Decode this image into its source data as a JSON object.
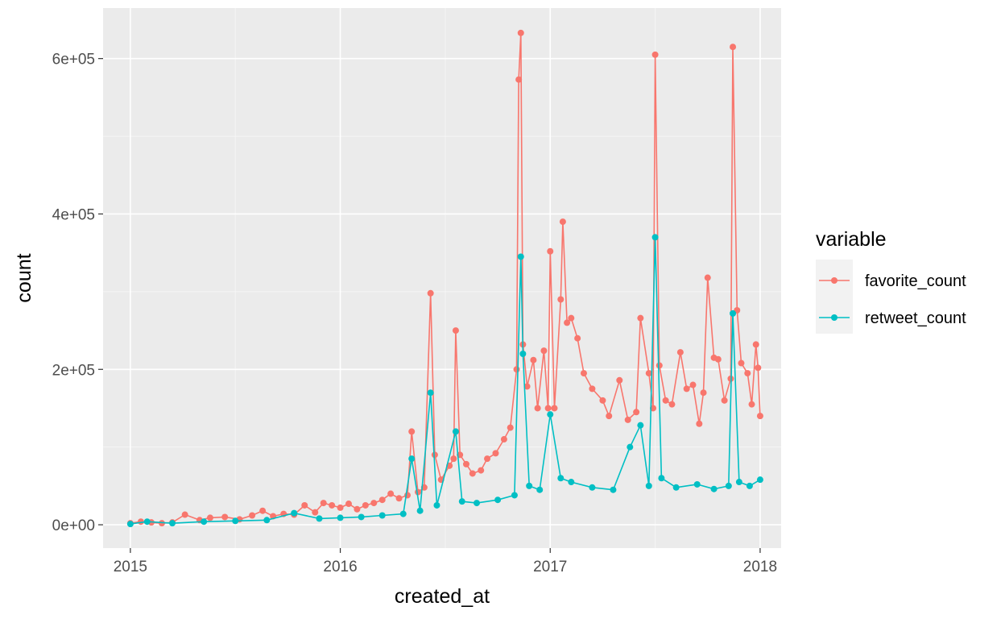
{
  "chart_data": {
    "type": "line",
    "xlabel": "created_at",
    "ylabel": "count",
    "xlim": [
      2014.87,
      2018.1
    ],
    "ylim": [
      -30000,
      665000
    ],
    "x_ticks": [
      2015,
      2016,
      2017,
      2018
    ],
    "x_tick_labels": [
      "2015",
      "2016",
      "2017",
      "2018"
    ],
    "y_ticks": [
      0,
      200000,
      400000,
      600000
    ],
    "y_tick_labels": [
      "0e+00",
      "2e+05",
      "4e+05",
      "6e+05"
    ],
    "grid": true,
    "legend": {
      "title": "variable",
      "position": "right"
    },
    "series": [
      {
        "name": "favorite_count",
        "color": "#F8766D",
        "points": [
          [
            2015.0,
            2000
          ],
          [
            2015.05,
            4000
          ],
          [
            2015.1,
            3000
          ],
          [
            2015.15,
            2000
          ],
          [
            2015.2,
            3000
          ],
          [
            2015.26,
            13000
          ],
          [
            2015.33,
            6000
          ],
          [
            2015.38,
            9000
          ],
          [
            2015.45,
            10000
          ],
          [
            2015.52,
            7000
          ],
          [
            2015.58,
            12000
          ],
          [
            2015.63,
            18000
          ],
          [
            2015.68,
            11000
          ],
          [
            2015.73,
            14000
          ],
          [
            2015.78,
            13000
          ],
          [
            2015.83,
            25000
          ],
          [
            2015.88,
            16000
          ],
          [
            2015.92,
            28000
          ],
          [
            2015.96,
            25000
          ],
          [
            2016.0,
            22000
          ],
          [
            2016.04,
            27000
          ],
          [
            2016.08,
            20000
          ],
          [
            2016.12,
            25000
          ],
          [
            2016.16,
            28000
          ],
          [
            2016.2,
            32000
          ],
          [
            2016.24,
            40000
          ],
          [
            2016.28,
            34000
          ],
          [
            2016.32,
            38000
          ],
          [
            2016.34,
            120000
          ],
          [
            2016.37,
            42000
          ],
          [
            2016.4,
            48000
          ],
          [
            2016.43,
            298000
          ],
          [
            2016.45,
            90000
          ],
          [
            2016.48,
            58000
          ],
          [
            2016.52,
            76000
          ],
          [
            2016.54,
            85000
          ],
          [
            2016.55,
            250000
          ],
          [
            2016.57,
            90000
          ],
          [
            2016.6,
            78000
          ],
          [
            2016.63,
            66000
          ],
          [
            2016.67,
            70000
          ],
          [
            2016.7,
            85000
          ],
          [
            2016.74,
            92000
          ],
          [
            2016.78,
            110000
          ],
          [
            2016.81,
            125000
          ],
          [
            2016.84,
            200000
          ],
          [
            2016.85,
            573000
          ],
          [
            2016.86,
            633000
          ],
          [
            2016.87,
            232000
          ],
          [
            2016.89,
            178000
          ],
          [
            2016.92,
            212000
          ],
          [
            2016.94,
            150000
          ],
          [
            2016.97,
            224000
          ],
          [
            2016.99,
            150000
          ],
          [
            2017.0,
            352000
          ],
          [
            2017.02,
            150000
          ],
          [
            2017.05,
            290000
          ],
          [
            2017.06,
            390000
          ],
          [
            2017.08,
            260000
          ],
          [
            2017.1,
            266000
          ],
          [
            2017.13,
            240000
          ],
          [
            2017.16,
            195000
          ],
          [
            2017.2,
            175000
          ],
          [
            2017.25,
            160000
          ],
          [
            2017.28,
            140000
          ],
          [
            2017.33,
            186000
          ],
          [
            2017.37,
            135000
          ],
          [
            2017.41,
            145000
          ],
          [
            2017.43,
            266000
          ],
          [
            2017.47,
            195000
          ],
          [
            2017.49,
            150000
          ],
          [
            2017.5,
            605000
          ],
          [
            2017.52,
            205000
          ],
          [
            2017.55,
            160000
          ],
          [
            2017.58,
            155000
          ],
          [
            2017.62,
            222000
          ],
          [
            2017.65,
            175000
          ],
          [
            2017.68,
            180000
          ],
          [
            2017.71,
            130000
          ],
          [
            2017.73,
            170000
          ],
          [
            2017.75,
            318000
          ],
          [
            2017.78,
            215000
          ],
          [
            2017.8,
            213000
          ],
          [
            2017.83,
            160000
          ],
          [
            2017.86,
            188000
          ],
          [
            2017.87,
            615000
          ],
          [
            2017.89,
            276000
          ],
          [
            2017.91,
            208000
          ],
          [
            2017.94,
            195000
          ],
          [
            2017.96,
            155000
          ],
          [
            2017.98,
            232000
          ],
          [
            2017.99,
            202000
          ],
          [
            2018.0,
            140000
          ]
        ]
      },
      {
        "name": "retweet_count",
        "color": "#00BFC4",
        "points": [
          [
            2015.0,
            1000
          ],
          [
            2015.08,
            4000
          ],
          [
            2015.2,
            2000
          ],
          [
            2015.35,
            4000
          ],
          [
            2015.5,
            5000
          ],
          [
            2015.65,
            6000
          ],
          [
            2015.78,
            15000
          ],
          [
            2015.9,
            8000
          ],
          [
            2016.0,
            9000
          ],
          [
            2016.1,
            10000
          ],
          [
            2016.2,
            12000
          ],
          [
            2016.3,
            14000
          ],
          [
            2016.34,
            85000
          ],
          [
            2016.38,
            18000
          ],
          [
            2016.43,
            170000
          ],
          [
            2016.46,
            25000
          ],
          [
            2016.55,
            120000
          ],
          [
            2016.58,
            30000
          ],
          [
            2016.65,
            28000
          ],
          [
            2016.75,
            32000
          ],
          [
            2016.83,
            38000
          ],
          [
            2016.86,
            345000
          ],
          [
            2016.87,
            220000
          ],
          [
            2016.9,
            50000
          ],
          [
            2016.95,
            45000
          ],
          [
            2017.0,
            142000
          ],
          [
            2017.05,
            60000
          ],
          [
            2017.1,
            55000
          ],
          [
            2017.2,
            48000
          ],
          [
            2017.3,
            45000
          ],
          [
            2017.38,
            100000
          ],
          [
            2017.43,
            128000
          ],
          [
            2017.47,
            50000
          ],
          [
            2017.5,
            370000
          ],
          [
            2017.53,
            60000
          ],
          [
            2017.6,
            48000
          ],
          [
            2017.7,
            52000
          ],
          [
            2017.78,
            46000
          ],
          [
            2017.85,
            50000
          ],
          [
            2017.87,
            272000
          ],
          [
            2017.9,
            55000
          ],
          [
            2017.95,
            50000
          ],
          [
            2018.0,
            58000
          ]
        ]
      }
    ]
  }
}
